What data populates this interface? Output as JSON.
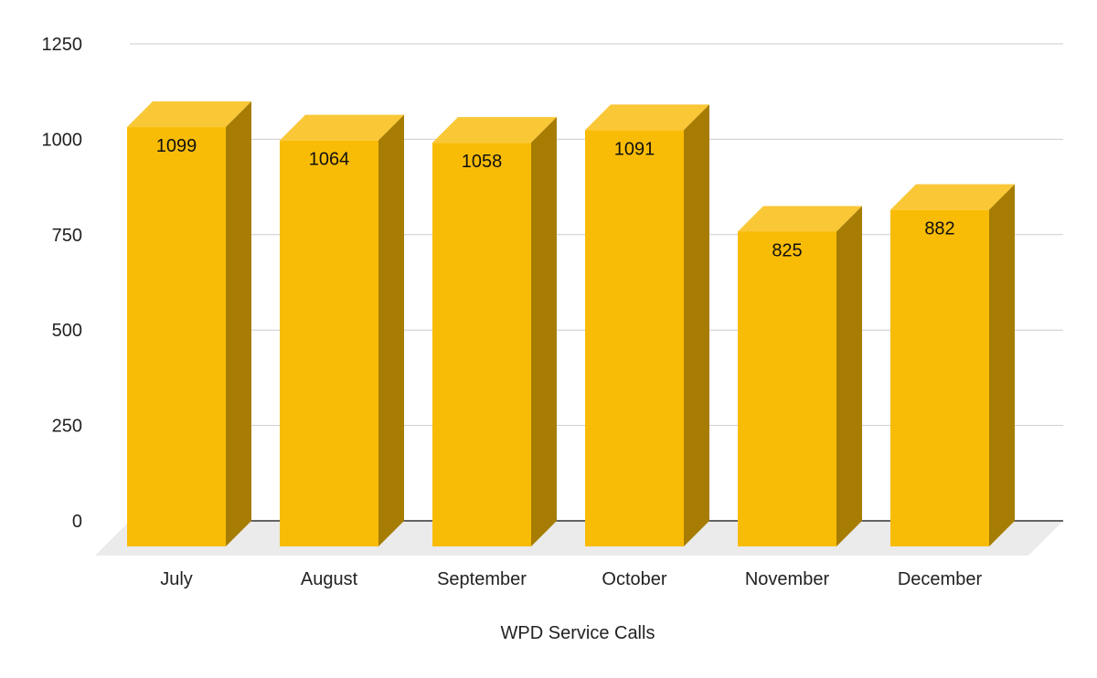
{
  "chart_data": {
    "type": "bar",
    "style": "3d",
    "title": "",
    "xlabel": "WPD Service Calls",
    "ylabel": "",
    "categories": [
      "July",
      "August",
      "September",
      "October",
      "November",
      "December"
    ],
    "values": [
      1099,
      1064,
      1058,
      1091,
      825,
      882
    ],
    "data_labels": [
      "1099",
      "1064",
      "1058",
      "1091",
      "825",
      "882"
    ],
    "ylim": [
      0,
      1250
    ],
    "yticks": [
      0,
      250,
      500,
      750,
      1000,
      1250
    ],
    "ytick_labels": [
      "0",
      "250",
      "500",
      "750",
      "1000",
      "1250"
    ],
    "grid": true,
    "legend": "none",
    "colors": {
      "bar_front": "#F9BC06",
      "bar_top": "#FAC737",
      "bar_side": "#A67D02",
      "floor": "#EBEBEB",
      "gridline": "#CCCCCC",
      "baseline": "#333333"
    }
  }
}
